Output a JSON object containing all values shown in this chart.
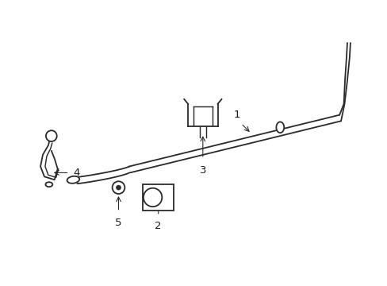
{
  "bg_color": "#ffffff",
  "line_color": "#2a2a2a",
  "label_color": "#1a1a1a",
  "figsize": [
    4.89,
    3.6
  ],
  "dpi": 100
}
